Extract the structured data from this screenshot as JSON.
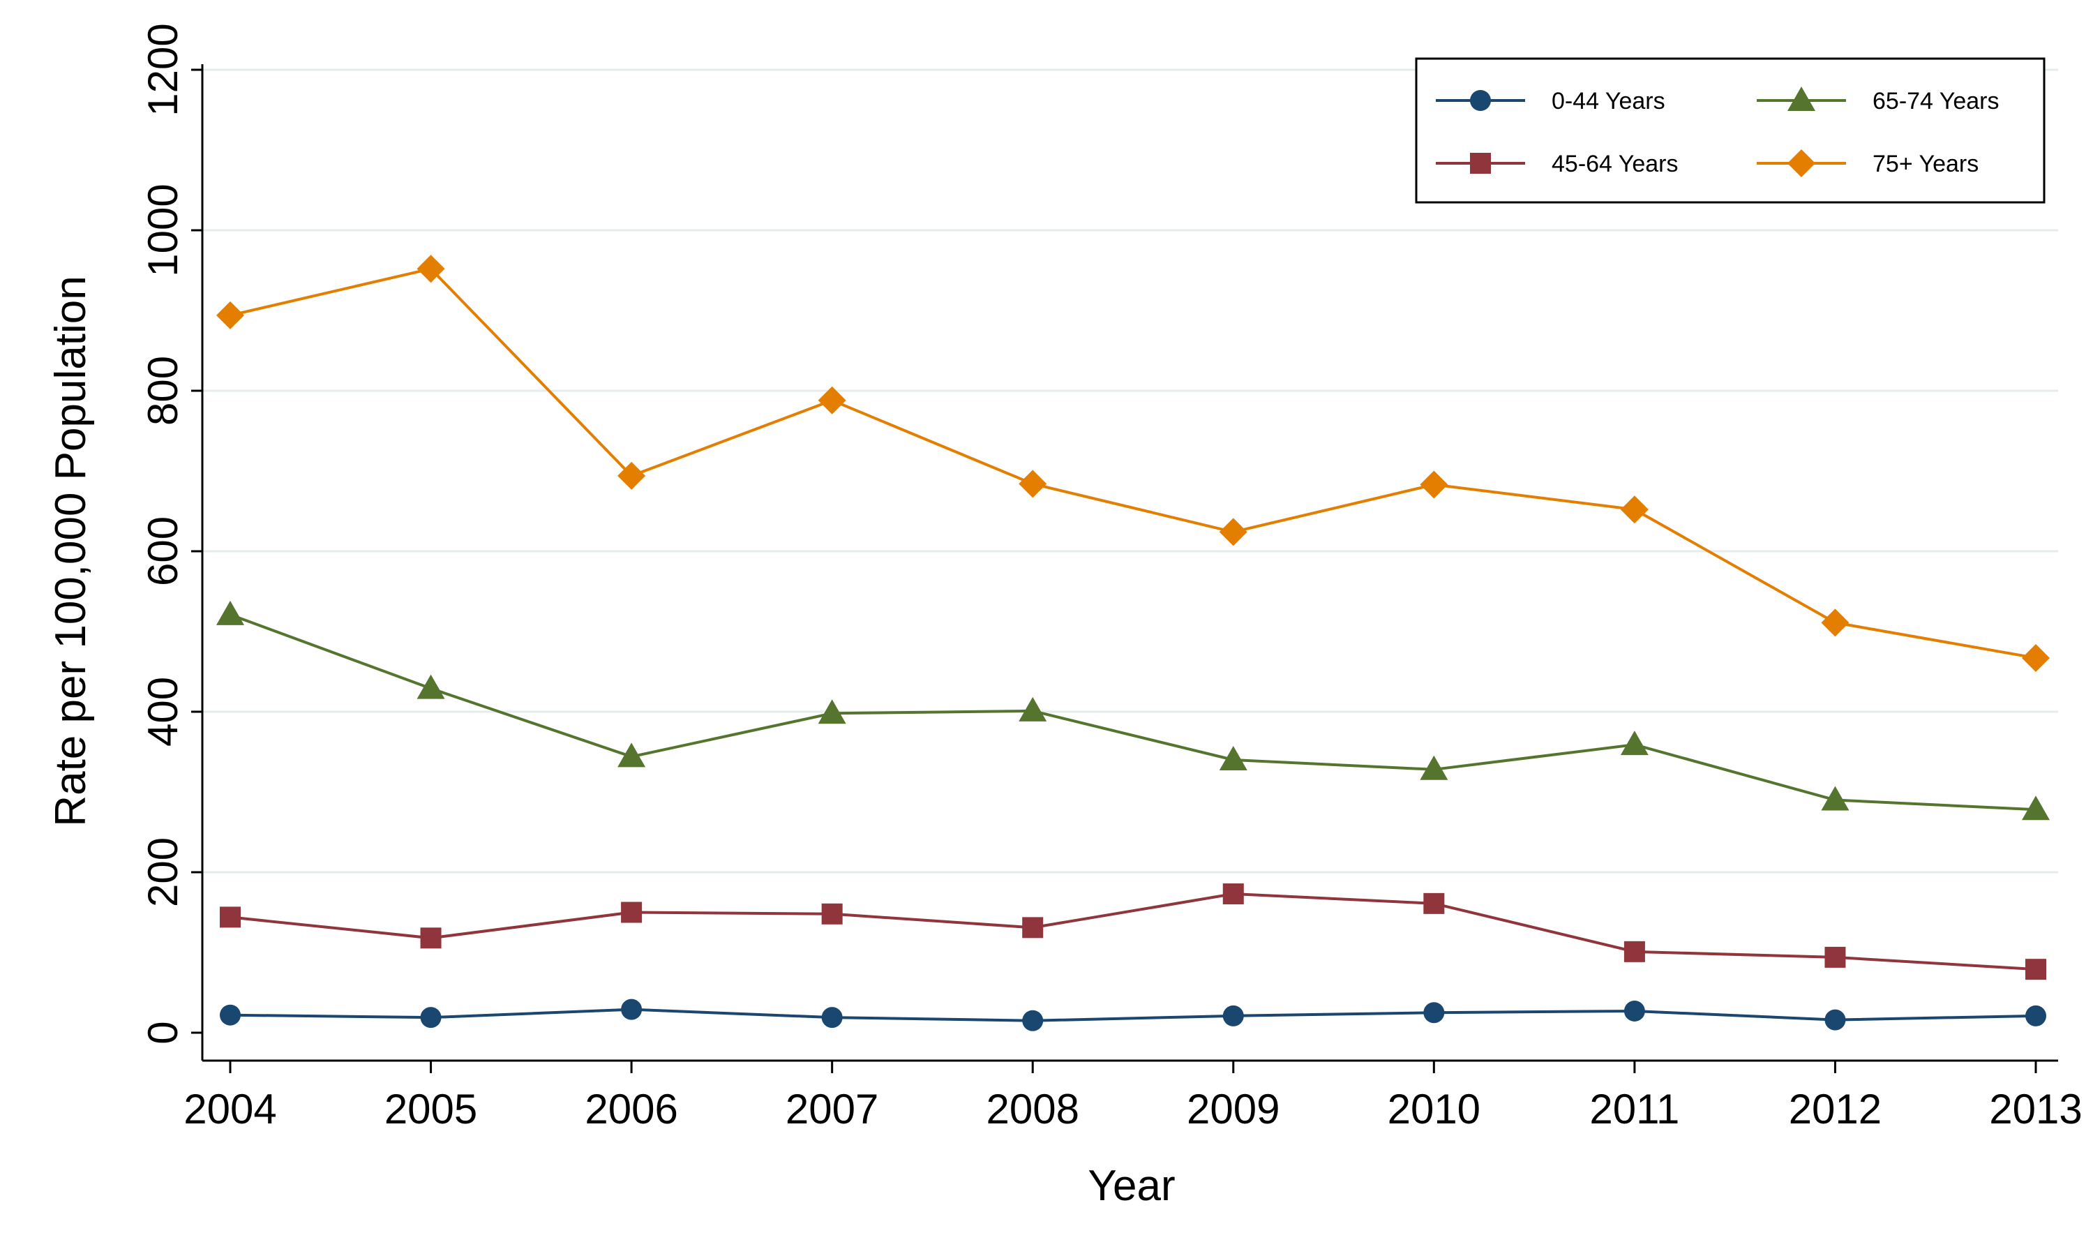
{
  "chart_data": {
    "type": "line",
    "xlabel": "Year",
    "ylabel": "Rate per 100,000 Population",
    "x": [
      2004,
      2005,
      2006,
      2007,
      2008,
      2009,
      2010,
      2011,
      2012,
      2013
    ],
    "xlim": [
      2004,
      2013
    ],
    "ylim": [
      0,
      1200
    ],
    "yticks": [
      0,
      200,
      400,
      600,
      800,
      1000,
      1200
    ],
    "grid": true,
    "legend_position": "top-right",
    "series": [
      {
        "name": "0-44 Years",
        "marker": "circle",
        "color": "#1a476f",
        "values": [
          22,
          19,
          29,
          19,
          15,
          21,
          25,
          27,
          16,
          21
        ]
      },
      {
        "name": "45-64 Years",
        "marker": "square",
        "color": "#90353b",
        "values": [
          144,
          118,
          150,
          148,
          131,
          173,
          161,
          101,
          94,
          79
        ]
      },
      {
        "name": "65-74 Years",
        "marker": "triangle",
        "color": "#55752f",
        "values": [
          521,
          429,
          344,
          398,
          401,
          340,
          328,
          359,
          290,
          278
        ]
      },
      {
        "name": "75+ Years",
        "marker": "diamond",
        "color": "#e37e00",
        "values": [
          894,
          952,
          694,
          788,
          684,
          624,
          683,
          652,
          511,
          467
        ]
      }
    ]
  }
}
